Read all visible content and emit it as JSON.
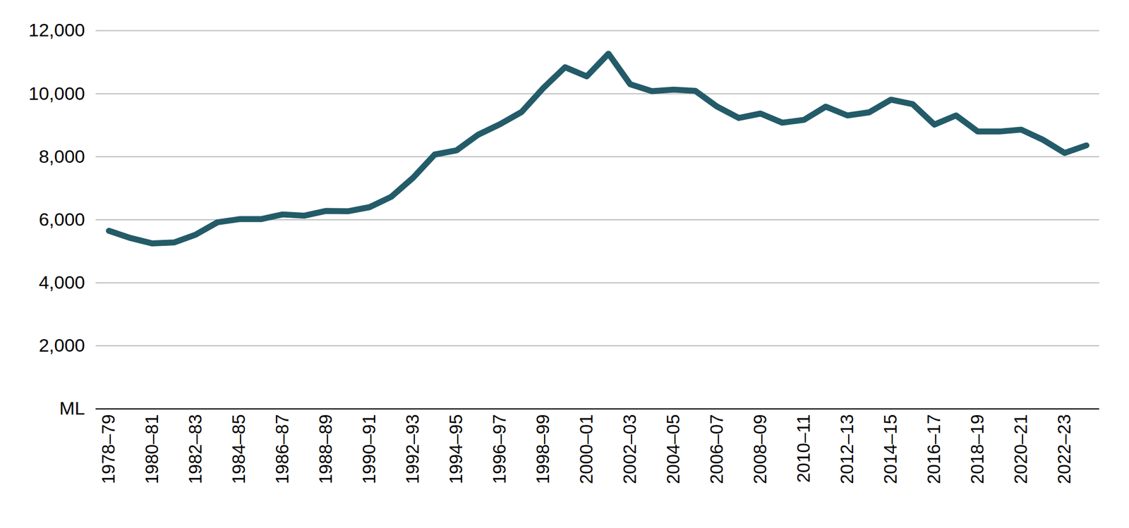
{
  "chart_data": {
    "type": "line",
    "categories": [
      "1978–79",
      null,
      "1980–81",
      null,
      "1982–83",
      null,
      "1984–85",
      null,
      "1986–87",
      null,
      "1988–89",
      null,
      "1990–91",
      null,
      "1992–93",
      null,
      "1994–95",
      null,
      "1996–97",
      null,
      "1998–99",
      null,
      "2000–01",
      null,
      "2002–03",
      null,
      "2004–05",
      null,
      "2006–07",
      null,
      "2008–09",
      null,
      "2010–11",
      null,
      "2012–13",
      null,
      "2014–15",
      null,
      "2016–17",
      null,
      "2018–19",
      null,
      "2020–21",
      null,
      "2022–23",
      null
    ],
    "values": [
      5650,
      5420,
      5250,
      5280,
      5530,
      5920,
      6020,
      6020,
      6170,
      6130,
      6280,
      6270,
      6400,
      6730,
      7330,
      8070,
      8200,
      8700,
      9030,
      9420,
      10180,
      10840,
      10550,
      11270,
      10300,
      10080,
      10130,
      10090,
      9590,
      9230,
      9370,
      9080,
      9170,
      9590,
      9310,
      9410,
      9810,
      9670,
      9020,
      9310,
      8800,
      8800,
      8860,
      8540,
      8120,
      8360
    ],
    "color": "#235b68",
    "ylim": [
      0,
      12000
    ],
    "yticks": [
      {
        "value": 0,
        "label": "ML"
      },
      {
        "value": 2000,
        "label": "2,000"
      },
      {
        "value": 4000,
        "label": "4,000"
      },
      {
        "value": 6000,
        "label": "6,000"
      },
      {
        "value": 8000,
        "label": "8,000"
      },
      {
        "value": 10000,
        "label": "10,000"
      },
      {
        "value": 12000,
        "label": "12,000"
      }
    ],
    "grid": true
  }
}
